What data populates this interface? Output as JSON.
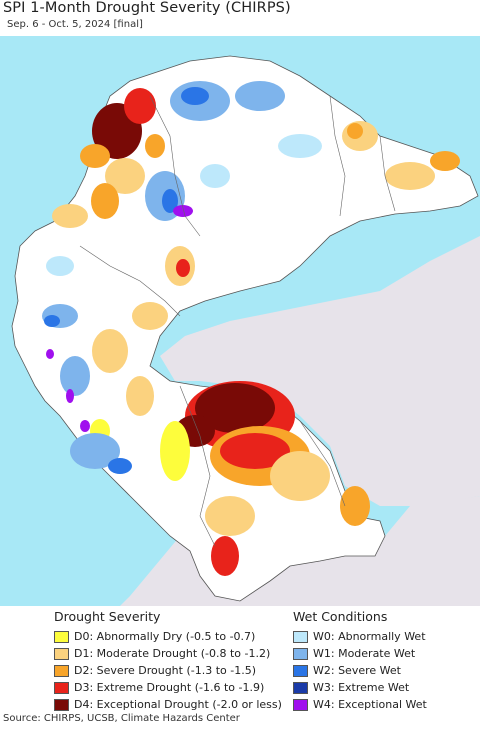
{
  "title": "SPI 1-Month Drought Severity (CHIRPS)",
  "subtitle": "Sep. 6 - Oct. 5, 2024 [final]",
  "colors": {
    "ocean": "#a8e8f6",
    "land_base": "#ffffff",
    "gray": "#e7e3ea",
    "D0": "#fdfd3c",
    "D1": "#fbd27f",
    "D2": "#f8a52a",
    "D3": "#e8231b",
    "D4": "#790a06",
    "W0": "#bde8fb",
    "W1": "#7eb4ec",
    "W2": "#2a75e6",
    "W3": "#1b3ba8",
    "W4": "#a010ee"
  },
  "legend_drought": {
    "heading": "Drought Severity",
    "items": [
      {
        "code": "D0",
        "label": "D0: Abnormally Dry (-0.5 to -0.7)"
      },
      {
        "code": "D1",
        "label": "D1: Moderate Drought (-0.8 to -1.2)"
      },
      {
        "code": "D2",
        "label": "D2: Severe Drought (-1.3 to -1.5)"
      },
      {
        "code": "D3",
        "label": "D3: Extreme Drought (-1.6 to -1.9)"
      },
      {
        "code": "D4",
        "label": "D4: Exceptional Drought (-2.0 or less)"
      }
    ]
  },
  "legend_wet": {
    "heading": "Wet Conditions",
    "items": [
      {
        "code": "W0",
        "label": "W0: Abnormally Wet"
      },
      {
        "code": "W1",
        "label": "W1: Moderate Wet"
      },
      {
        "code": "W2",
        "label": "W2: Severe Wet"
      },
      {
        "code": "W3",
        "label": "W3: Extreme Wet"
      },
      {
        "code": "W4",
        "label": "W4: Exceptional Wet"
      }
    ]
  },
  "source": "Source: CHIRPS, UCSB, Climate Hazards Center"
}
